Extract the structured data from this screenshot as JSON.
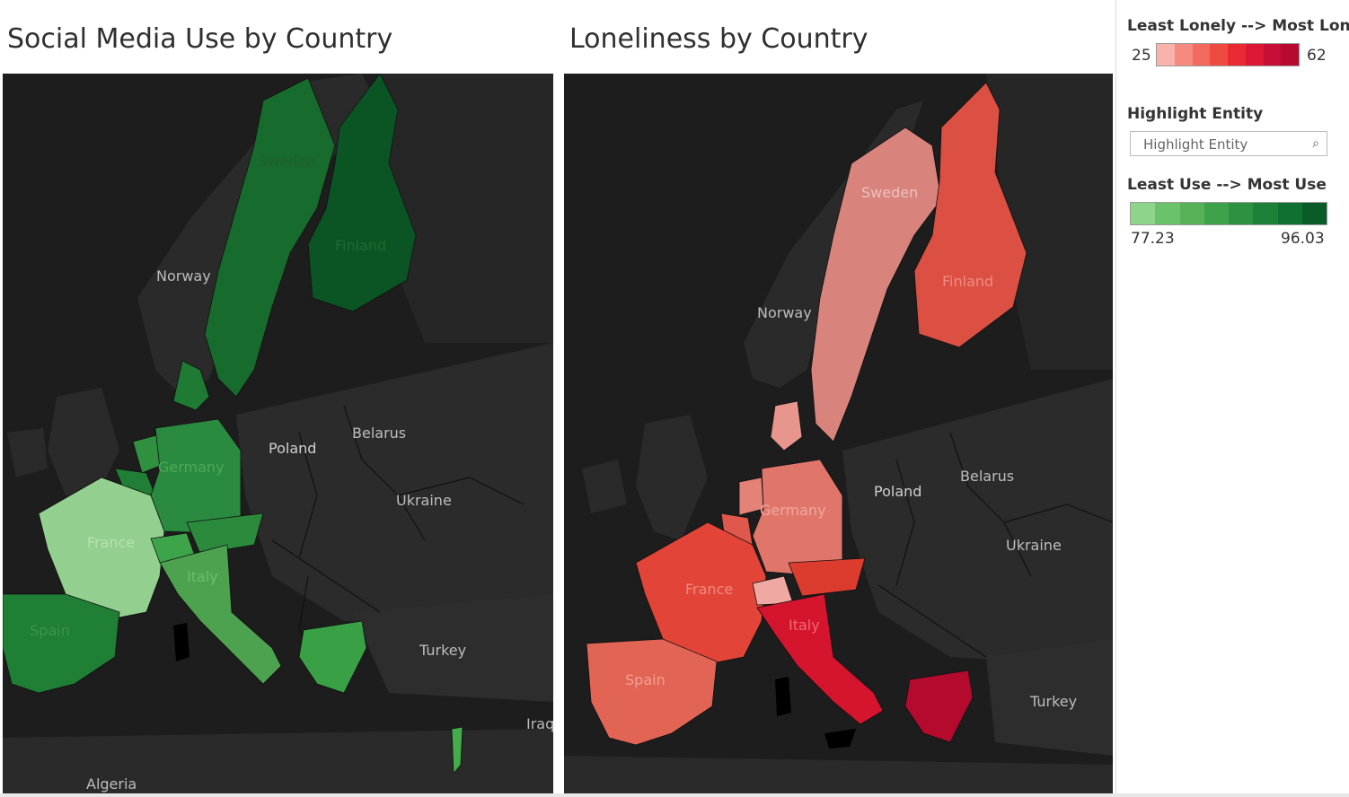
{
  "titles": {
    "left": "Social Media Use by Country",
    "right": "Loneliness by Country"
  },
  "legend_loneliness": {
    "title": "Least Lonely --> Most Lon..",
    "min": "25",
    "max": "62",
    "colors": [
      "#f8b3ac",
      "#f68a80",
      "#f26a5e",
      "#ee4a40",
      "#e92a33",
      "#dc1736",
      "#c80d36",
      "#b70a30"
    ]
  },
  "highlight": {
    "title": "Highlight Entity",
    "placeholder": "Highlight Entity",
    "icon": "search-icon"
  },
  "legend_social": {
    "title": "Least Use --> Most Use",
    "min": "77.23",
    "max": "96.03",
    "colors": [
      "#8ed48a",
      "#6cc26a",
      "#55b257",
      "#3fa14a",
      "#2e9142",
      "#1d8039",
      "#106f31",
      "#095c29"
    ]
  },
  "map_left": {
    "labels": {
      "sweden": "Sweden",
      "finland": "Finland",
      "norway": "Norway",
      "poland": "Poland",
      "belarus": "Belarus",
      "germany": "Germany",
      "ukraine": "Ukraine",
      "france": "France",
      "italy": "Italy",
      "spain": "Spain",
      "turkey": "Turkey",
      "iraq": "Iraq",
      "algeria": "Algeria"
    },
    "fills": {
      "sweden": "#176b2d",
      "finland": "#0b5525",
      "germany": "#2a8a3f",
      "netherlands": "#2f913f",
      "belgium": "#207e36",
      "france": "#93cf8e",
      "switzerland": "#3da44a",
      "austria": "#2b8a3c",
      "italy": "#4da24f",
      "spain": "#1f7f34",
      "greece": "#3aa046",
      "denmark": "#1f7a33",
      "israel": "#44ac4b"
    }
  },
  "map_right": {
    "labels": {
      "sweden": "Sweden",
      "finland": "Finland",
      "norway": "Norway",
      "poland": "Poland",
      "belarus": "Belarus",
      "germany": "Germany",
      "ukraine": "Ukraine",
      "france": "France",
      "italy": "Italy",
      "spain": "Spain",
      "turkey": "Turkey"
    },
    "fills": {
      "sweden": "#d8847d",
      "finland": "#dc4f43",
      "germany": "#e0756a",
      "netherlands": "#e58277",
      "belgium": "#e0574c",
      "france": "#e24538",
      "switzerland": "#f0a9a2",
      "austria": "#dc3c2e",
      "italy": "#d5142e",
      "spain": "#e26454",
      "greece": "#b40a2e",
      "denmark": "#e8958d",
      "israel": "#d4182e"
    }
  }
}
